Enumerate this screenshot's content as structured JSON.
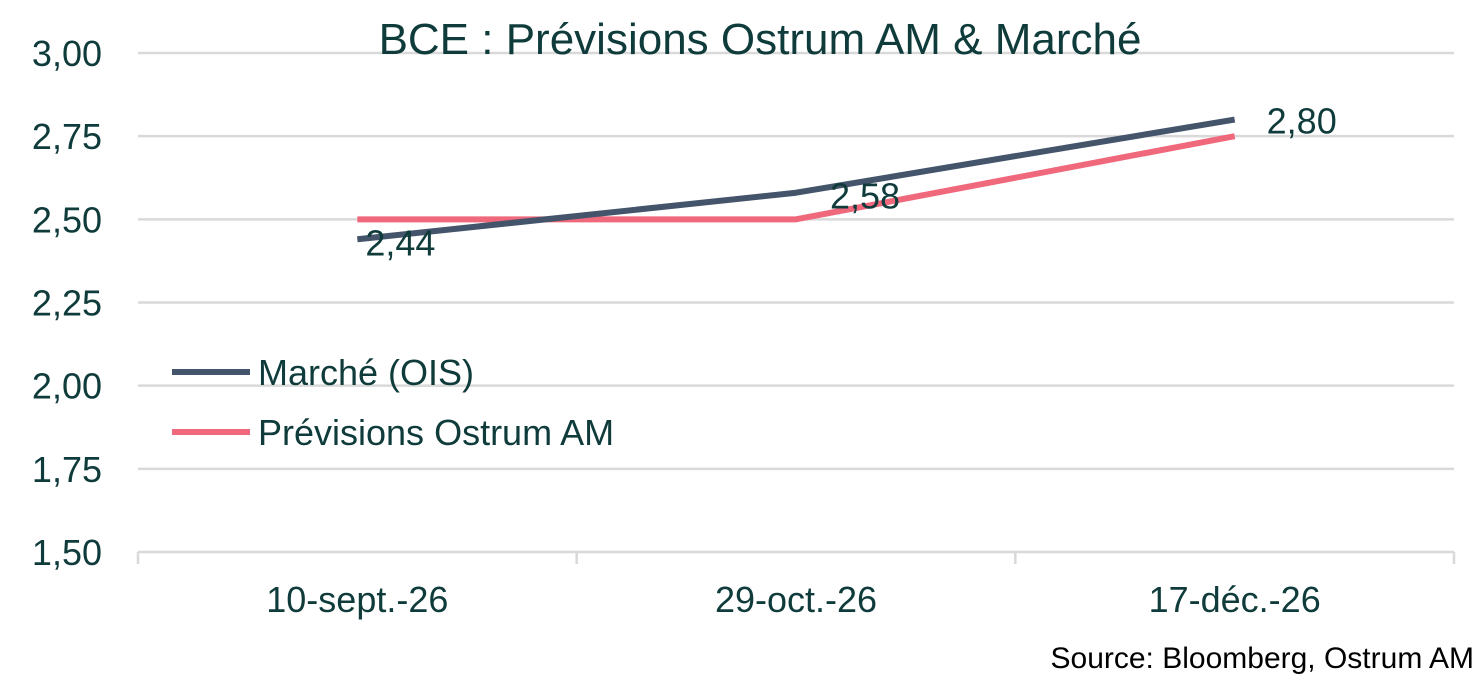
{
  "chart_data": {
    "type": "line",
    "title": "BCE : Prévisions Ostrum AM & Marché",
    "categories": [
      "10-sept.-26",
      "29-oct.-26",
      "17-déc.-26"
    ],
    "series": [
      {
        "name": "Marché (OIS)",
        "values": [
          2.44,
          2.58,
          2.8
        ],
        "color": "#44546a",
        "data_labels": [
          "2,44",
          "2,58",
          "2,80"
        ]
      },
      {
        "name": "Prévisions Ostrum AM",
        "values": [
          2.5,
          2.5,
          2.75
        ],
        "color": "#f0687b"
      }
    ],
    "ylim": [
      1.5,
      3.0
    ],
    "yticks": [
      1.5,
      1.75,
      2.0,
      2.25,
      2.5,
      2.75,
      3.0
    ],
    "ytick_labels": [
      "1,50",
      "1,75",
      "2,00",
      "2,25",
      "2,50",
      "2,75",
      "3,00"
    ],
    "grid": true,
    "legend_position": "left",
    "xlabel": "",
    "ylabel": ""
  },
  "source": "Source: Bloomberg, Ostrum AM"
}
